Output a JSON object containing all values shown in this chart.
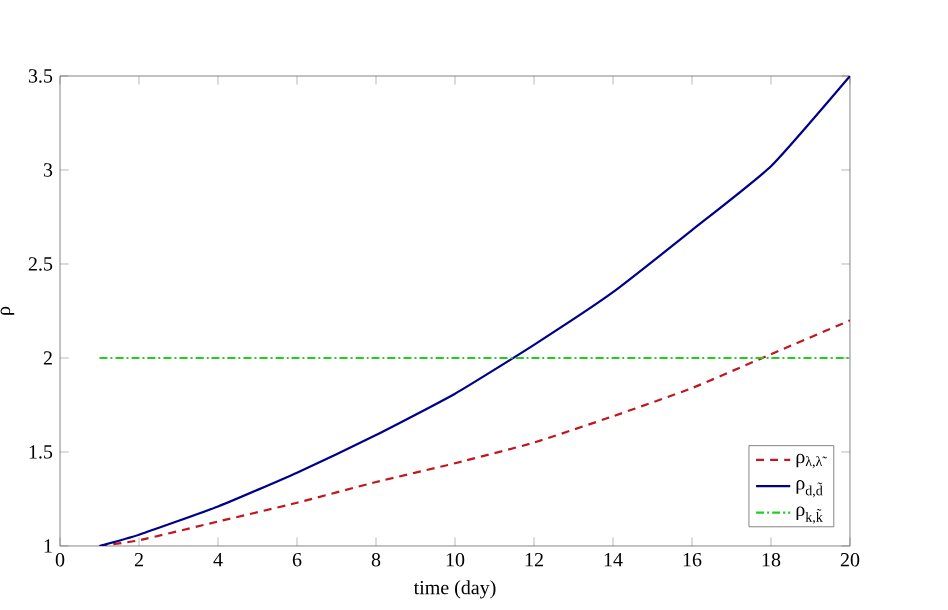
{
  "chart_data": {
    "type": "line",
    "xlabel": "time (day)",
    "ylabel": "ρ",
    "x": [
      1,
      2,
      4,
      6,
      8,
      10,
      12,
      14,
      16,
      18,
      20
    ],
    "series": [
      {
        "name": "ρ$_{λ,λ̃}$",
        "color": "#c0161e",
        "line_style": "dashed",
        "values": [
          1,
          1.03,
          1.13,
          1.23,
          1.34,
          1.44,
          1.55,
          1.69,
          1.84,
          2.02,
          2.2
        ]
      },
      {
        "name": "ρ$_{d,d̃}$",
        "color": "#00008b",
        "line_style": "solid",
        "values": [
          1,
          1.06,
          1.21,
          1.39,
          1.59,
          1.81,
          2.07,
          2.35,
          2.68,
          3.02,
          3.5
        ]
      },
      {
        "name": "ρ$_{k,k̃}$",
        "color": "#22cc22",
        "line_style": "dashdot",
        "values": [
          2,
          2,
          2,
          2,
          2,
          2,
          2,
          2,
          2,
          2,
          2
        ]
      }
    ],
    "xlim": [
      0,
      20
    ],
    "ylim": [
      1,
      3.5
    ],
    "xticks": [
      0,
      2,
      4,
      6,
      8,
      10,
      12,
      14,
      16,
      18,
      20
    ],
    "yticks": [
      1,
      1.5,
      2,
      2.5,
      3,
      3.5
    ],
    "grid": false,
    "legend": "bottom right",
    "marker": "none"
  }
}
